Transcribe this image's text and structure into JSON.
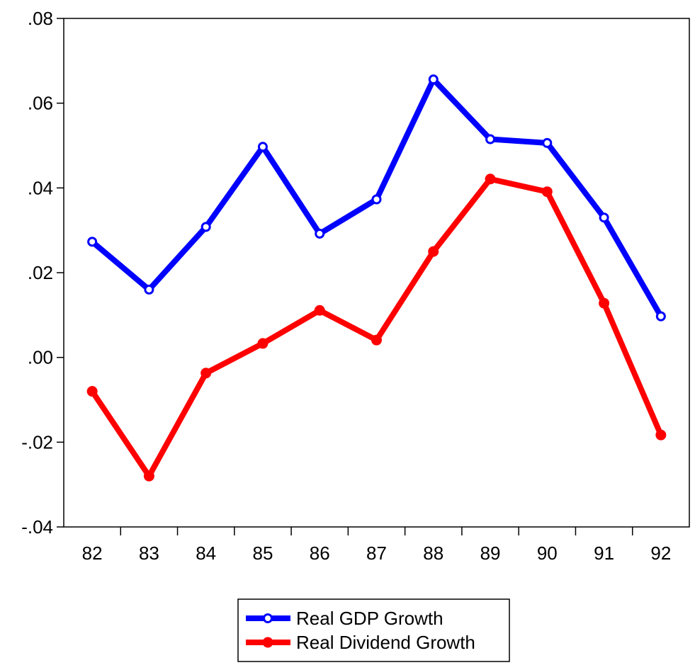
{
  "chart_data": {
    "type": "line",
    "title": "",
    "xlabel": "",
    "ylabel": "",
    "categories": [
      "82",
      "83",
      "84",
      "85",
      "86",
      "87",
      "88",
      "89",
      "90",
      "91",
      "92"
    ],
    "ylim": [
      -0.04,
      0.08
    ],
    "yticks": [
      0.08,
      0.06,
      0.04,
      0.02,
      0.0,
      -0.02,
      -0.04
    ],
    "ytick_labels": [
      ".08",
      ".06",
      ".04",
      ".02",
      ".00",
      "-.02",
      "-.04"
    ],
    "grid": false,
    "legend_position": "bottom-center",
    "series": [
      {
        "name": "Real GDP Growth",
        "color": "#0000ff",
        "marker": "open-circle",
        "values": [
          0.0273,
          0.016,
          0.0308,
          0.0497,
          0.0292,
          0.0373,
          0.0656,
          0.0515,
          0.0506,
          0.033,
          0.0097
        ]
      },
      {
        "name": "Real Dividend Growth",
        "color": "#ff0000",
        "marker": "filled-circle",
        "values": [
          -0.008,
          -0.028,
          -0.0037,
          0.0033,
          0.0111,
          0.0041,
          0.025,
          0.0421,
          0.0391,
          0.0128,
          -0.0183
        ]
      }
    ]
  }
}
